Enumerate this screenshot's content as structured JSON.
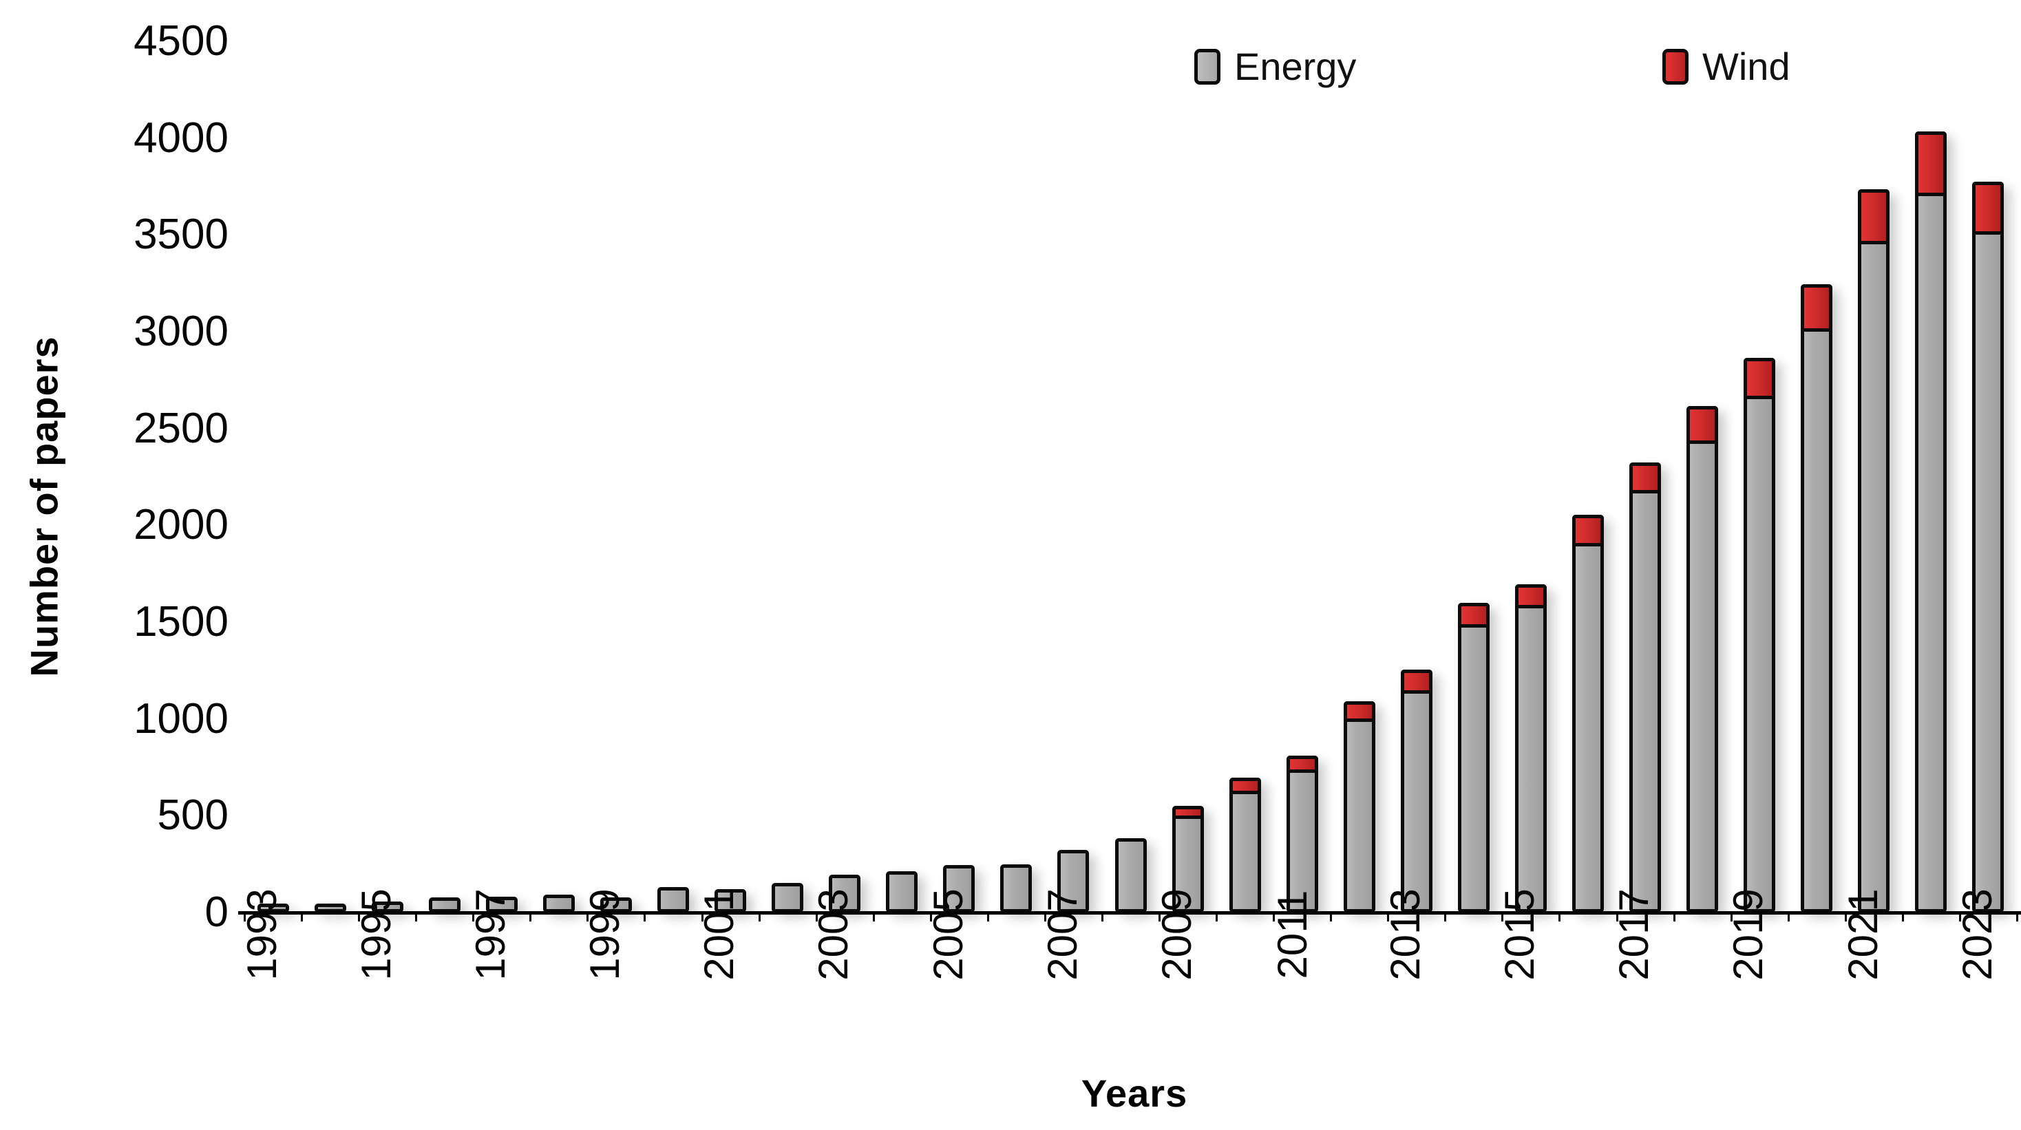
{
  "chart_data": {
    "type": "bar",
    "stacked": true,
    "title": "",
    "xlabel": "Years",
    "ylabel": "Number of papers",
    "categories": [
      1993,
      1994,
      1995,
      1996,
      1997,
      1998,
      1999,
      2000,
      2001,
      2002,
      2003,
      2004,
      2005,
      2006,
      2007,
      2008,
      2009,
      2010,
      2011,
      2012,
      2013,
      2014,
      2015,
      2016,
      2017,
      2018,
      2019,
      2020,
      2021,
      2022,
      2023
    ],
    "x_tick_labels": [
      "1993",
      "1995",
      "1997",
      "1999",
      "2001",
      "2003",
      "2005",
      "2007",
      "2009",
      "2011",
      "2013",
      "2015",
      "2017",
      "2019",
      "2021",
      "2023"
    ],
    "series": [
      {
        "name": "Energy",
        "color": "#ACACAC",
        "values": [
          8,
          7,
          18,
          38,
          42,
          52,
          38,
          88,
          78,
          108,
          148,
          165,
          195,
          200,
          270,
          325,
          485,
          612,
          722,
          985,
          1130,
          1470,
          1570,
          1890,
          2165,
          2420,
          2650,
          3000,
          3450,
          3700,
          3500
        ]
      },
      {
        "name": "Wind",
        "color": "#CE2B2B",
        "values": [
          2,
          2,
          4,
          5,
          5,
          6,
          5,
          8,
          8,
          10,
          12,
          13,
          15,
          15,
          18,
          25,
          30,
          48,
          52,
          70,
          90,
          95,
          90,
          130,
          125,
          160,
          180,
          210,
          250,
          300,
          240
        ]
      }
    ],
    "ylim": [
      0,
      4500
    ],
    "y_ticks": [
      0,
      500,
      1000,
      1500,
      2000,
      2500,
      3000,
      3500,
      4000,
      4500
    ],
    "y_tick_labels": [
      "0",
      "500",
      "1000",
      "1500",
      "2000",
      "2500",
      "3000",
      "3500",
      "4000",
      "4500"
    ],
    "legend_position": "top-center",
    "grid": false
  },
  "legend": {
    "items": [
      {
        "label": "Energy",
        "color": "#ACACAC"
      },
      {
        "label": "Wind",
        "color": "#CE2B2B"
      }
    ]
  },
  "colors": {
    "bar_border": "#0b0b0b",
    "energy_fill": "#ACACAC",
    "wind_fill": "#CE2B2B",
    "text": "#050505",
    "background": "#ffffff"
  }
}
